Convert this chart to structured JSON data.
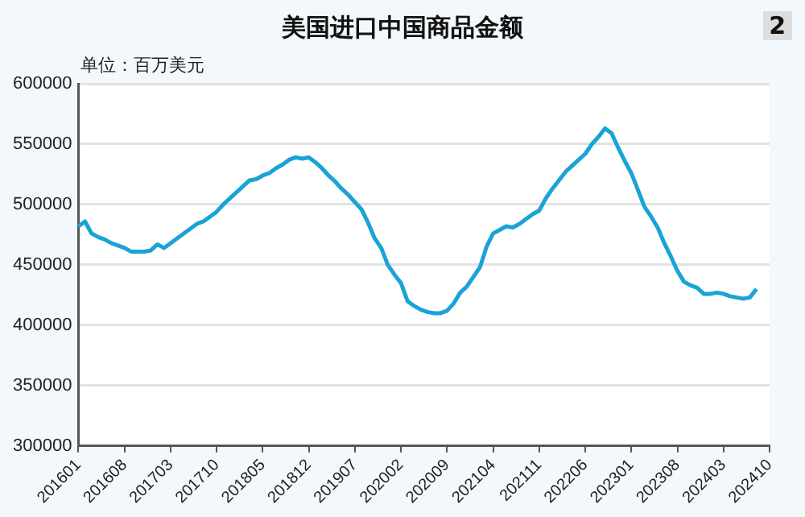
{
  "chart_data": {
    "type": "line",
    "title": "美国进口中国商品金额",
    "ylabel": "单位：百万美元",
    "annotations": [
      "2"
    ],
    "categories": [
      "201601",
      null,
      null,
      null,
      null,
      null,
      null,
      "201608",
      null,
      null,
      null,
      null,
      null,
      null,
      "201703",
      null,
      null,
      null,
      null,
      null,
      null,
      "201710",
      null,
      null,
      null,
      null,
      null,
      null,
      "201805",
      null,
      null,
      null,
      null,
      null,
      null,
      "201812",
      null,
      null,
      null,
      null,
      null,
      null,
      "201907",
      null,
      null,
      null,
      null,
      null,
      null,
      "202002",
      null,
      null,
      null,
      null,
      null,
      null,
      "202009",
      null,
      null,
      null,
      null,
      null,
      null,
      "202104",
      null,
      null,
      null,
      null,
      null,
      null,
      "202111",
      null,
      null,
      null,
      null,
      null,
      null,
      "202206",
      null,
      null,
      null,
      null,
      null,
      null,
      "202301",
      null,
      null,
      null,
      null,
      null,
      null,
      "202308",
      null,
      null,
      null,
      null,
      null,
      null,
      "202403",
      null,
      null,
      null,
      null,
      null,
      null,
      "202410"
    ],
    "series": [
      {
        "color": "#1aa3d6",
        "values": [
          482000,
          486000,
          476000,
          473000,
          471000,
          468000,
          466000,
          464000,
          461000,
          461000,
          461000,
          462000,
          467000,
          464000,
          468000,
          472000,
          476000,
          480000,
          484000,
          486000,
          490000,
          494000,
          500000,
          505000,
          510000,
          515000,
          520000,
          521000,
          524000,
          526000,
          530000,
          533000,
          537000,
          539000,
          538000,
          539000,
          535000,
          530000,
          524000,
          519000,
          513000,
          508000,
          502000,
          496000,
          485000,
          472000,
          464000,
          450000,
          442000,
          435000,
          420000,
          416000,
          413000,
          411000,
          410000,
          410000,
          412000,
          418000,
          427000,
          432000,
          440000,
          448000,
          465000,
          476000,
          479000,
          482000,
          481000,
          484000,
          488000,
          492000,
          495000,
          505000,
          513000,
          520000,
          527000,
          532000,
          537000,
          542000,
          550000,
          556000,
          563000,
          559000,
          547000,
          536000,
          526000,
          512000,
          498000,
          490000,
          481000,
          468000,
          457000,
          445000,
          436000,
          433000,
          431000,
          426000,
          426000,
          427000,
          426000,
          424000,
          423000,
          422000,
          423000,
          430000,
          null,
          null
        ]
      }
    ],
    "ylim": [
      300000,
      600000
    ],
    "yticks": [
      300000,
      350000,
      400000,
      450000,
      500000,
      550000,
      600000
    ],
    "grid": "y",
    "legend": false,
    "marker": "none",
    "line_style": "solid"
  }
}
